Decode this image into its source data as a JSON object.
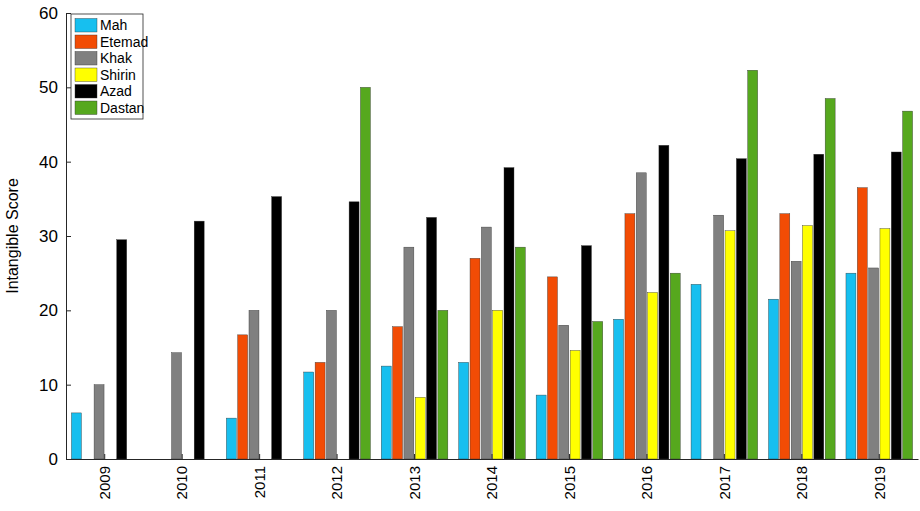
{
  "chart_data": {
    "type": "bar",
    "y_label": "Intangible Score",
    "categories": [
      "2009",
      "2010",
      "2011",
      "2012",
      "2013",
      "2014",
      "2015",
      "2016",
      "2017",
      "2018",
      "2019"
    ],
    "series": [
      {
        "name": "Mah",
        "color": "#17bfef",
        "values": [
          6.2,
          null,
          5.5,
          11.7,
          12.5,
          13,
          8.6,
          18.8,
          23.5,
          21.5,
          25
        ]
      },
      {
        "name": "Etemad",
        "color": "#f24c05",
        "values": [
          null,
          null,
          16.7,
          13,
          17.8,
          27,
          24.5,
          33,
          null,
          33,
          36.5
        ]
      },
      {
        "name": "Khak",
        "color": "#808080",
        "values": [
          10,
          14.3,
          20,
          20,
          28.5,
          31.2,
          18,
          38.5,
          32.8,
          26.6,
          25.7
        ]
      },
      {
        "name": "Shirin",
        "color": "#ffff00",
        "values": [
          null,
          null,
          null,
          null,
          8.3,
          20,
          14.6,
          22.4,
          30.7,
          31.4,
          31
        ]
      },
      {
        "name": "Azad",
        "color": "#000000",
        "values": [
          29.5,
          32,
          35.3,
          34.6,
          32.5,
          39.2,
          28.7,
          42.2,
          40.4,
          41,
          41.3
        ]
      },
      {
        "name": "Dastan",
        "color": "#56a81e",
        "values": [
          null,
          null,
          null,
          50,
          20,
          28.5,
          18.5,
          25,
          52.3,
          48.5,
          46.8
        ]
      }
    ],
    "ylim": [
      0,
      60
    ],
    "yticks": [
      0,
      10,
      20,
      30,
      40,
      50,
      60
    ],
    "legend": "upper left",
    "grid": false
  }
}
